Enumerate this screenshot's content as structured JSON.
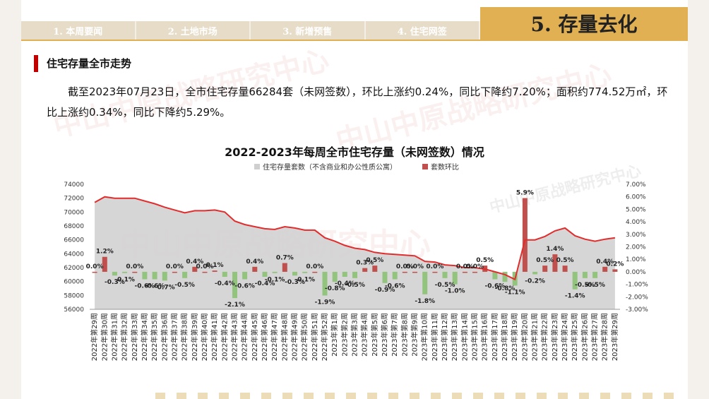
{
  "nav": {
    "tabs": [
      "1. 本周要闻",
      "2. 土地市场",
      "3. 新增预售",
      "4. 住宅网签"
    ],
    "current": "5. 存量去化"
  },
  "section_title": "住宅存量全市走势",
  "paragraph": "截至2023年07月23日，全市住宅存量66284套（未网签数），环比上涨约0.24%，同比下降约7.20%；面积约774.52万㎡，环比上涨约0.34%，同比下降约5.29%。",
  "watermark": "中山中原战略研究中心",
  "colors": {
    "area": "#cfcfcf",
    "line": "#e12d2d",
    "bar": "#c0504d",
    "bar_neg": "#92c47d",
    "accent": "#e0b052"
  },
  "chart_data": {
    "type": "bar",
    "title": "2022-2023年每周全市住宅存量（未网签数）情况",
    "legend": [
      "住宅存量套数（不含商业和办公性质公寓）",
      "套数环比"
    ],
    "categories": [
      "2022年第29周",
      "2022年第30周",
      "2022年第31周",
      "2022年第32周",
      "2022年第33周",
      "2022年第34周",
      "2022年第35周",
      "2022年第36周",
      "2022年第37周",
      "2022年第38周",
      "2022年第39周",
      "2022年第40周",
      "2022年第41周",
      "2022年第42周",
      "2022年第43周",
      "2022年第44周",
      "2022年第45周",
      "2022年第46周",
      "2022年第47周",
      "2022年第48周",
      "2022年第49周",
      "2022年第50周",
      "2022年第51周",
      "2022年第52周",
      "2023年第1周",
      "2023年第2周",
      "2023年第3周",
      "2023年第4周",
      "2023年第5周",
      "2023年第6周",
      "2023年第7周",
      "2023年第8周",
      "2023年第9周",
      "2023年第10周",
      "2023年第11周",
      "2023年第12周",
      "2023年第13周",
      "2023年第14周",
      "2023年第15周",
      "2023年第16周",
      "2023年第17周",
      "2023年第18周",
      "2023年第19周",
      "2023年第20周",
      "2023年第21周",
      "2023年第22周",
      "2023年第23周",
      "2023年第24周",
      "2023年第25周",
      "2023年第26周",
      "2023年第27周",
      "2023年第28周",
      "2023年第29周"
    ],
    "series": [
      {
        "name": "住宅存量套数（不含商业和办公性质公寓）",
        "type": "area",
        "axis": "left",
        "values": [
          71400,
          72200,
          72000,
          72000,
          72000,
          71600,
          71200,
          70700,
          70300,
          69900,
          70200,
          70200,
          70300,
          70000,
          68700,
          68200,
          67900,
          67600,
          67500,
          67900,
          67700,
          67400,
          67400,
          66300,
          65800,
          65200,
          64800,
          64600,
          64200,
          64000,
          63900,
          63800,
          63700,
          62900,
          62800,
          62400,
          62300,
          62000,
          62000,
          61800,
          61400,
          61000,
          60300,
          66000,
          66000,
          66500,
          67300,
          67700,
          66600,
          66100,
          65800,
          66100,
          66300
        ]
      },
      {
        "name": "套数环比",
        "type": "bar",
        "axis": "right",
        "values": [
          0.0,
          1.2,
          -0.3,
          -0.1,
          0.0,
          -0.6,
          -0.6,
          -0.7,
          0.0,
          -0.5,
          0.4,
          0.0,
          0.1,
          -0.4,
          -2.1,
          -0.6,
          0.4,
          -0.4,
          -0.1,
          0.7,
          -0.3,
          -0.1,
          0.0,
          -1.9,
          -0.8,
          -0.4,
          -0.5,
          0.3,
          0.5,
          -0.9,
          -0.6,
          0.0,
          0.0,
          -1.8,
          0.0,
          -0.5,
          -1.0,
          0.0,
          0.0,
          0.5,
          -0.6,
          -0.8,
          -1.1,
          5.9,
          -0.2,
          0.5,
          1.4,
          0.5,
          -1.4,
          -0.5,
          -0.5,
          0.4,
          0.2
        ]
      }
    ],
    "data_labels": [
      "0.0%",
      "1.2%",
      "-0.3%",
      "-0.1%",
      "0.0%",
      "-0.6%",
      "-0.6%",
      "-0.7%",
      "0.0%",
      "-0.5%",
      "0.4%",
      "0.0%",
      "0.1%",
      "-0.4%",
      "-2.1%",
      "-0.6%",
      "0.4%",
      "-0.4%",
      "-0.1%",
      "0.7%",
      "-0.3%",
      "-0.1%",
      "0.0%",
      "-1.9%",
      "-0.8%",
      "-0.4%",
      "-0.5%",
      "0.3%",
      "0.5%",
      "-0.9%",
      "-0.6%",
      "0.0%",
      "0.0%",
      "-1.8%",
      "0.0%",
      "-0.5%",
      "-1.0%",
      "0.0%",
      "0.0%",
      "0.5%",
      "-0.6%",
      "-0.8%",
      "-1.1%",
      "5.9%",
      "-0.2%",
      "0.5%",
      "1.4%",
      "0.5%",
      "-1.4%",
      "-0.5%",
      "-0.5%",
      "0.4%",
      "0.2%"
    ],
    "y_left": {
      "min": 56000,
      "max": 74000,
      "ticks": [
        "56000",
        "58000",
        "60000",
        "62000",
        "64000",
        "66000",
        "68000",
        "70000",
        "72000",
        "74000"
      ]
    },
    "y_right": {
      "min": -3,
      "max": 7,
      "ticks": [
        "-3.00%",
        "-2.00%",
        "-1.00%",
        "0.00%",
        "1.00%",
        "2.00%",
        "3.00%",
        "4.00%",
        "5.00%",
        "6.00%",
        "7.00%"
      ]
    },
    "grid": false,
    "legend_position": "top"
  }
}
